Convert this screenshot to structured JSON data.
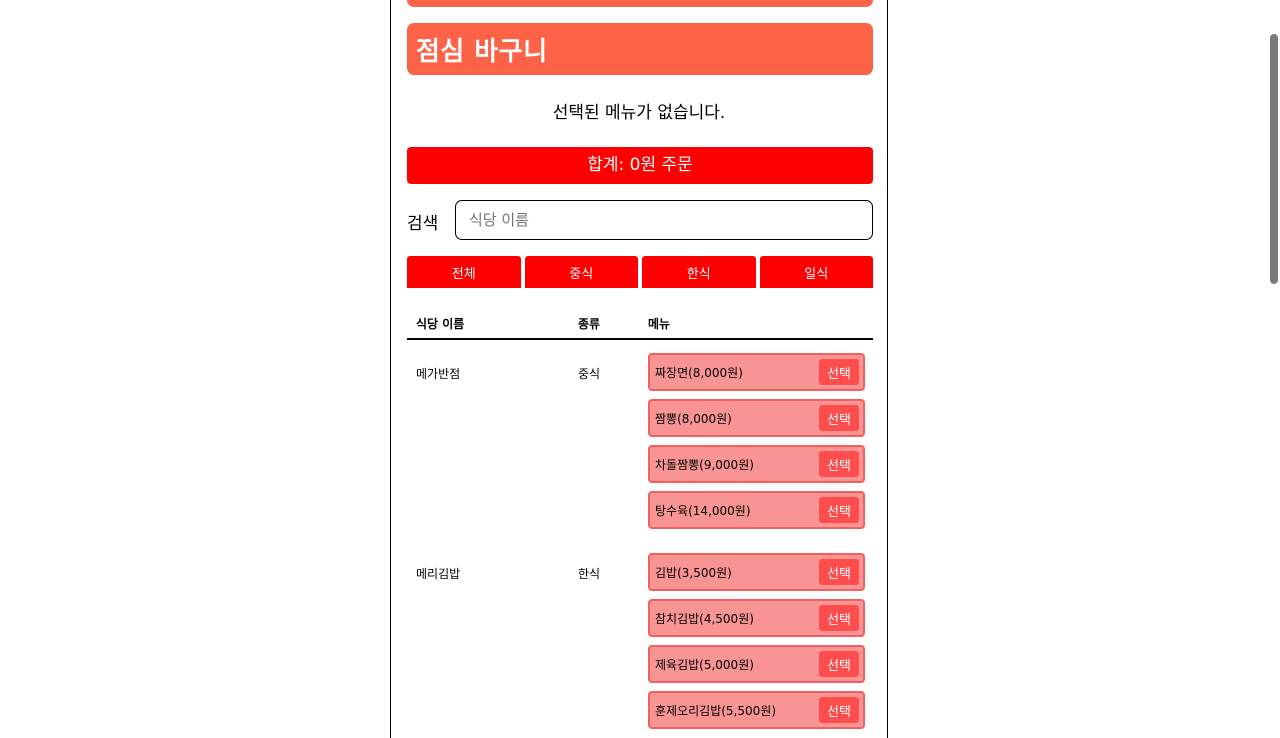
{
  "header": {
    "title": "점심 바구니"
  },
  "basket": {
    "empty_message": "선택된 메뉴가 없습니다.",
    "total_button": "합계: 0원 주문"
  },
  "search": {
    "label": "검색",
    "placeholder": "식당 이름"
  },
  "tabs": [
    {
      "label": "전체"
    },
    {
      "label": "중식"
    },
    {
      "label": "한식"
    },
    {
      "label": "일식"
    }
  ],
  "table": {
    "headers": {
      "name": "식당 이름",
      "type": "종류",
      "menu": "메뉴"
    },
    "restaurants": [
      {
        "name": "메가반점",
        "type": "중식",
        "menus": [
          {
            "label": "짜장면(8,000원)",
            "button": "선택"
          },
          {
            "label": "짬뽕(8,000원)",
            "button": "선택"
          },
          {
            "label": "차돌짬뽕(9,000원)",
            "button": "선택"
          },
          {
            "label": "탕수육(14,000원)",
            "button": "선택"
          }
        ]
      },
      {
        "name": "메리김밥",
        "type": "한식",
        "menus": [
          {
            "label": "김밥(3,500원)",
            "button": "선택"
          },
          {
            "label": "참치김밥(4,500원)",
            "button": "선택"
          },
          {
            "label": "제육김밥(5,000원)",
            "button": "선택"
          },
          {
            "label": "훈제오리김밥(5,500원)",
            "button": "선택"
          }
        ]
      }
    ]
  },
  "colors": {
    "header": "#ff6347",
    "accent": "#ff0000",
    "menu_bg": "#f89494",
    "menu_border": "#f06060",
    "select_button": "#ff4d4d"
  }
}
